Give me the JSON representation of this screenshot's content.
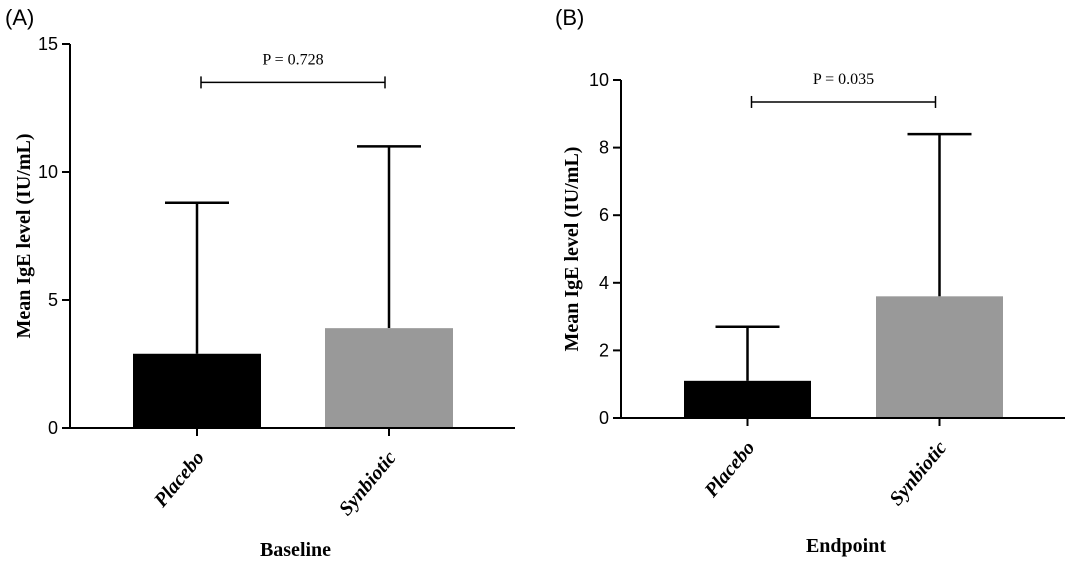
{
  "chart_data": [
    {
      "type": "bar",
      "panel_label": "(A)",
      "categories": [
        "Placebo",
        "Synbiotic"
      ],
      "values": [
        2.9,
        3.9
      ],
      "error_upper": [
        8.8,
        11.0
      ],
      "colors": [
        "#000000",
        "#999999"
      ],
      "xlabel": "Baseline",
      "ylabel": "Mean IgE level (IU/mL)",
      "ylim": [
        0,
        15
      ],
      "yticks": [
        0,
        5,
        10,
        15
      ],
      "annotation": "P = 0.728",
      "annotation_level": 13.5,
      "grid": false
    },
    {
      "type": "bar",
      "panel_label": "(B)",
      "categories": [
        "Placebo",
        "Synbiotic"
      ],
      "values": [
        1.1,
        3.6
      ],
      "error_upper": [
        2.7,
        8.4
      ],
      "colors": [
        "#000000",
        "#999999"
      ],
      "xlabel": "Endpoint",
      "ylabel": "Mean IgE level (IU/mL)",
      "ylim": [
        0,
        10
      ],
      "yticks": [
        0,
        2,
        4,
        6,
        8,
        10
      ],
      "annotation": "P = 0.035",
      "annotation_level": 9.35,
      "grid": false
    }
  ]
}
